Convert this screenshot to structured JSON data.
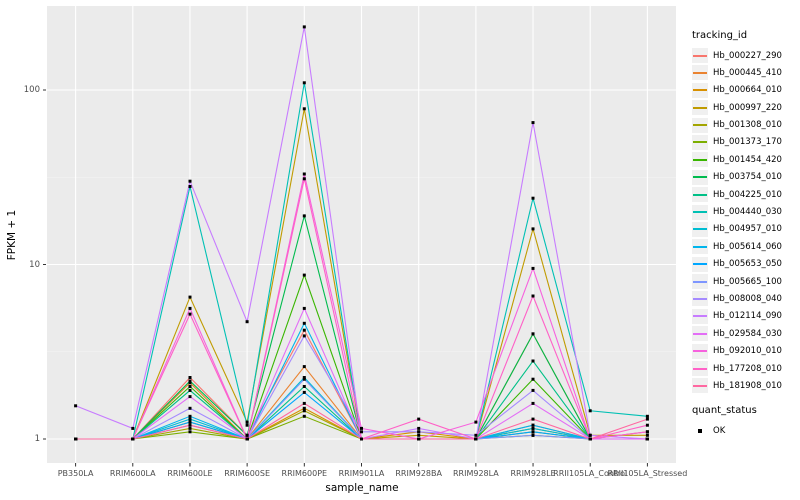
{
  "chart_data": {
    "type": "line",
    "title": "",
    "xlabel": "sample_name",
    "ylabel": "FPKM + 1",
    "y_scale": "log10",
    "y_ticks": [
      1,
      10,
      100
    ],
    "ylim": [
      1,
      290
    ],
    "grid": true,
    "panel_bg": "#EBEBEB",
    "legend_position": "right",
    "categories": [
      "PB350LA",
      "RRIM600LA",
      "RRIM600LE",
      "RRIM600SE",
      "RRIM600PE",
      "RRIM901LA",
      "RRIM928BA",
      "RRIM928LA",
      "RRIM928LE",
      "RRII105LA_Control",
      "RRII105LA_Stressed"
    ],
    "legend": {
      "title": "tracking_id"
    },
    "point_legend": {
      "title": "quant_status",
      "items": [
        {
          "label": "OK",
          "marker": "square",
          "color": "#000000"
        }
      ]
    },
    "series": [
      {
        "name": "Hb_000227_290",
        "color": "#F8766D",
        "values": [
          1,
          1,
          2.25,
          1.05,
          4.2,
          1,
          1,
          1,
          1.2,
          1,
          1
        ]
      },
      {
        "name": "Hb_000445_410",
        "color": "#EA8331",
        "values": [
          1,
          1,
          2.1,
          1,
          2.6,
          1,
          1,
          1,
          4.0,
          1,
          1
        ]
      },
      {
        "name": "Hb_000664_010",
        "color": "#D89000",
        "values": [
          1,
          1,
          1.25,
          1,
          1.5,
          1,
          1.1,
          1,
          1.15,
          1,
          1.1
        ]
      },
      {
        "name": "Hb_000997_220",
        "color": "#C09B00",
        "values": [
          1,
          1,
          6.5,
          1.25,
          78,
          1,
          1.05,
          1,
          16,
          1.05,
          1.05
        ]
      },
      {
        "name": "Hb_001308_010",
        "color": "#A3A500",
        "values": [
          1,
          1,
          1.15,
          1,
          1.45,
          1,
          1,
          1,
          1.05,
          1,
          1
        ]
      },
      {
        "name": "Hb_001373_170",
        "color": "#7CAE00",
        "values": [
          1,
          1,
          1.1,
          1,
          1.35,
          1,
          1,
          1,
          1.1,
          1,
          1
        ]
      },
      {
        "name": "Hb_001454_420",
        "color": "#39B600",
        "values": [
          1,
          1,
          2.0,
          1,
          8.7,
          1,
          1,
          1,
          2.2,
          1,
          1
        ]
      },
      {
        "name": "Hb_003754_010",
        "color": "#00BB4E",
        "values": [
          1,
          1,
          2.15,
          1.05,
          19,
          1,
          1,
          1,
          4.0,
          1,
          1
        ]
      },
      {
        "name": "Hb_004225_010",
        "color": "#00C087",
        "values": [
          1,
          1,
          1.9,
          1,
          2.0,
          1,
          1,
          1,
          2.8,
          1,
          1
        ]
      },
      {
        "name": "Hb_004440_030",
        "color": "#00C0B4",
        "values": [
          1,
          1,
          28,
          1.2,
          110,
          1,
          1,
          1,
          24,
          1.45,
          1.35
        ]
      },
      {
        "name": "Hb_004957_010",
        "color": "#00BDD2",
        "values": [
          1,
          1,
          1.3,
          1,
          2.25,
          1,
          1,
          1,
          1.15,
          1,
          1
        ]
      },
      {
        "name": "Hb_005614_060",
        "color": "#00B5EC",
        "values": [
          1,
          1,
          1.35,
          1,
          4.6,
          1,
          1,
          1,
          1.2,
          1,
          1
        ]
      },
      {
        "name": "Hb_005653_050",
        "color": "#00A7FF",
        "values": [
          1,
          1,
          1.25,
          1,
          1.85,
          1,
          1,
          1,
          1.1,
          1,
          1
        ]
      },
      {
        "name": "Hb_005665_100",
        "color": "#7E96FF",
        "values": [
          1,
          1,
          1.2,
          1,
          2.2,
          1,
          1,
          1,
          1.05,
          1,
          1
        ]
      },
      {
        "name": "Hb_008008_040",
        "color": "#A58AFF",
        "values": [
          1,
          1,
          1.5,
          1,
          3.9,
          1.1,
          1.1,
          1.05,
          1.9,
          1,
          1
        ]
      },
      {
        "name": "Hb_012114_090",
        "color": "#C77CFF",
        "values": [
          1.55,
          1.15,
          30,
          4.7,
          230,
          1,
          1.15,
          1,
          65,
          1.05,
          1
        ]
      },
      {
        "name": "Hb_029584_030",
        "color": "#E36EF6",
        "values": [
          1,
          1,
          1.75,
          1,
          5.6,
          1,
          1,
          1,
          1.6,
          1,
          1
        ]
      },
      {
        "name": "Hb_092010_010",
        "color": "#F762DE",
        "values": [
          1,
          1,
          5.6,
          1,
          33,
          1.15,
          1,
          1.25,
          9.5,
          1,
          1.1
        ]
      },
      {
        "name": "Hb_177208_010",
        "color": "#FF61C7",
        "values": [
          1,
          1,
          5.2,
          1,
          31,
          1,
          1.3,
          1,
          6.6,
          1,
          1.2
        ]
      },
      {
        "name": "Hb_181908_010",
        "color": "#FF68A1",
        "values": [
          1,
          1,
          1.2,
          1,
          1.6,
          1,
          1,
          1,
          1.3,
          1,
          1.3
        ]
      }
    ]
  }
}
